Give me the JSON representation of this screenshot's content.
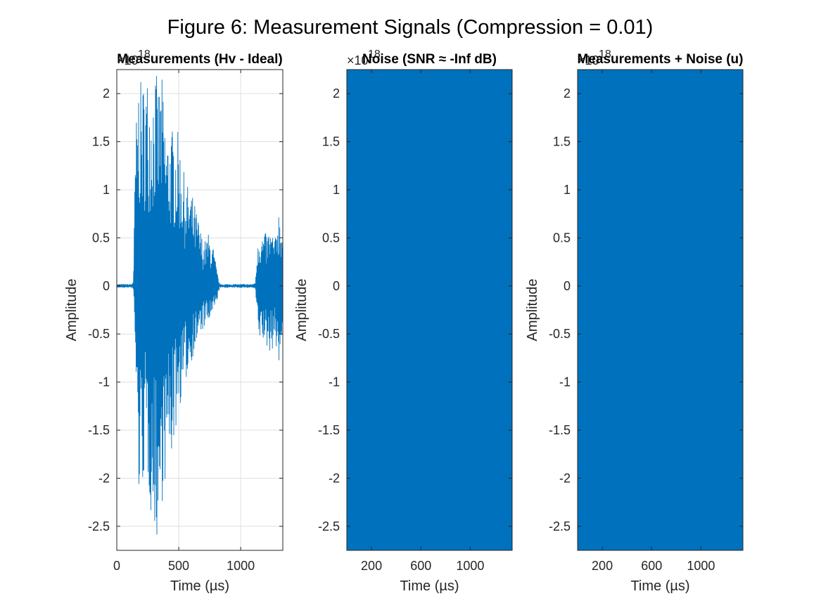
{
  "figure_title": "Figure 6: Measurement Signals (Compression = 0.01)",
  "colors": {
    "series": "#0072bd",
    "axis": "#262626",
    "grid": "#dfdfdf",
    "fill": "#0072bd"
  },
  "chart_data": [
    {
      "type": "line",
      "title": "Measurements (Hv - Ideal)",
      "xlabel": "Time (µs)",
      "ylabel": "Amplitude",
      "y_multiplier": "×10",
      "y_exponent": "18",
      "xlim": [
        0,
        1340
      ],
      "ylim": [
        -2.75,
        2.25
      ],
      "xticks": [
        0,
        500,
        1000
      ],
      "xtick_labels": [
        "0",
        "500",
        "1000"
      ],
      "yticks": [
        2,
        1.5,
        1,
        0.5,
        0,
        -0.5,
        -1,
        -1.5,
        -2,
        -2.5
      ],
      "ytick_labels": [
        "2",
        "1.5",
        "1",
        "0.5",
        "0",
        "-0.5",
        "-1",
        "-1.5",
        "-2",
        "-2.5"
      ],
      "grid": true,
      "envelope": {
        "x": [
          0,
          120,
          135,
          150,
          175,
          200,
          240,
          280,
          310,
          340,
          360,
          400,
          450,
          500,
          550,
          600,
          650,
          700,
          740,
          780,
          810,
          830,
          1100,
          1120,
          1140,
          1170,
          1200,
          1240,
          1280,
          1300,
          1320,
          1340
        ],
        "upper": [
          0.02,
          0.02,
          0.07,
          1.55,
          2.2,
          2.1,
          2.25,
          2.1,
          2.25,
          2.1,
          2.25,
          1.6,
          1.65,
          1.6,
          1.1,
          1.0,
          0.75,
          0.45,
          0.55,
          0.4,
          0.15,
          0.02,
          0.02,
          0.05,
          0.6,
          0.55,
          0.55,
          0.6,
          0.5,
          0.85,
          0.8,
          0.6
        ],
        "lower": [
          -0.02,
          -0.02,
          -0.05,
          -0.75,
          -2.25,
          -2.15,
          -1.9,
          -2.45,
          -2.6,
          -2.75,
          -2.3,
          -2.0,
          -1.75,
          -1.3,
          -1.05,
          -0.8,
          -0.6,
          -0.45,
          -0.4,
          -0.3,
          -0.15,
          -0.02,
          -0.02,
          -0.05,
          -0.6,
          -0.55,
          -0.65,
          -0.7,
          -0.6,
          -0.75,
          -1.0,
          -0.4
        ]
      }
    },
    {
      "type": "area",
      "title": "Noise (SNR ≈ -Inf dB)",
      "xlabel": "Time (µs)",
      "ylabel": "Amplitude",
      "y_multiplier": "×10",
      "y_exponent": "18",
      "xlim": [
        0,
        1340
      ],
      "ylim": [
        -2.75,
        2.25
      ],
      "xticks": [
        200,
        600,
        1000
      ],
      "xtick_labels": [
        "200",
        "600",
        "1000"
      ],
      "yticks": [
        2,
        1.5,
        1,
        0.5,
        0,
        -0.5,
        -1,
        -1.5,
        -2,
        -2.5
      ],
      "ytick_labels": [
        "2",
        "1.5",
        "1",
        "0.5",
        "0",
        "-0.5",
        "-1",
        "-1.5",
        "-2",
        "-2.5"
      ],
      "grid": false,
      "filled": true
    },
    {
      "type": "area",
      "title": "Measurements + Noise (u)",
      "xlabel": "Time (µs)",
      "ylabel": "Amplitude",
      "y_multiplier": "×10",
      "y_exponent": "18",
      "xlim": [
        0,
        1340
      ],
      "ylim": [
        -2.75,
        2.25
      ],
      "xticks": [
        200,
        600,
        1000
      ],
      "xtick_labels": [
        "200",
        "600",
        "1000"
      ],
      "yticks": [
        2,
        1.5,
        1,
        0.5,
        0,
        -0.5,
        -1,
        -1.5,
        -2,
        -2.5
      ],
      "ytick_labels": [
        "2",
        "1.5",
        "1",
        "0.5",
        "0",
        "-0.5",
        "-1",
        "-1.5",
        "-2",
        "-2.5"
      ],
      "grid": false,
      "filled": true
    }
  ]
}
